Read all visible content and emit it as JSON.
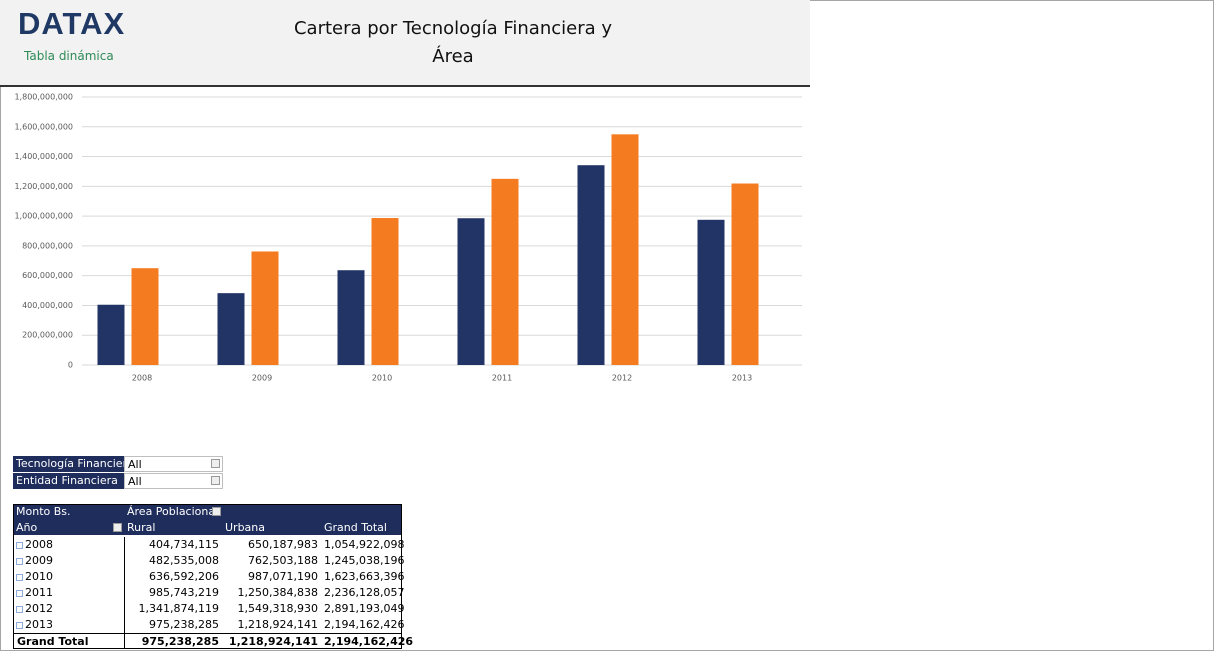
{
  "header": {
    "logo": "DATAX",
    "subtitle": "Tabla dinámica",
    "title": "Cartera por Tecnología Financiera y Área"
  },
  "chart_data": {
    "type": "bar",
    "categories": [
      "2008",
      "2009",
      "2010",
      "2011",
      "2012",
      "2013"
    ],
    "series": [
      {
        "color": "#223366",
        "values": [
          404734115,
          482535008,
          636592206,
          985743219,
          1341874119,
          975238285
        ]
      },
      {
        "color": "#f47b20",
        "values": [
          650187983,
          762503188,
          987071190,
          1250384838,
          1549318930,
          1218924141
        ]
      }
    ],
    "ylim": [
      0,
      1800000000
    ],
    "yticks": [
      0,
      {
        "value": 200000000,
        "label": "200,000,000"
      },
      {
        "value": 400000000,
        "label": "400,000,000"
      },
      {
        "value": 600000000,
        "label": "600,000,000"
      },
      {
        "value": 800000000,
        "label": "800,000,000"
      },
      {
        "value": 1000000000,
        "label": "1,000,000,000"
      },
      {
        "value": 1200000000,
        "label": "1,200,000,000"
      },
      {
        "value": 1400000000,
        "label": "1,400,000,000"
      },
      {
        "value": 1600000000,
        "label": "1,600,000,000"
      },
      {
        "value": 1800000000,
        "label": "1,800,000,000"
      }
    ],
    "grid": true
  },
  "filters": [
    [
      "Tecnología Financiera",
      "All"
    ],
    [
      "Entidad Financiera",
      "All"
    ]
  ],
  "pivot": {
    "corner": "Monto Bs.",
    "column_field": "Área Poblacional",
    "row_field": "Año",
    "columns": [
      "Rural",
      "Urbana",
      "Grand Total"
    ],
    "rows": [
      [
        "2008",
        "404,734,115",
        "650,187,983",
        "1,054,922,098"
      ],
      [
        "2009",
        "482,535,008",
        "762,503,188",
        "1,245,038,196"
      ],
      [
        "2010",
        "636,592,206",
        "987,071,190",
        "1,623,663,396"
      ],
      [
        "2011",
        "985,743,219",
        "1,250,384,838",
        "2,236,128,057"
      ],
      [
        "2012",
        "1,341,874,119",
        "1,549,318,930",
        "2,891,193,049"
      ],
      [
        "2013",
        "975,238,285",
        "1,218,924,141",
        "2,194,162,426"
      ]
    ],
    "total": [
      "Grand Total",
      "975,238,285",
      "1,218,924,141",
      "2,194,162,426"
    ]
  }
}
